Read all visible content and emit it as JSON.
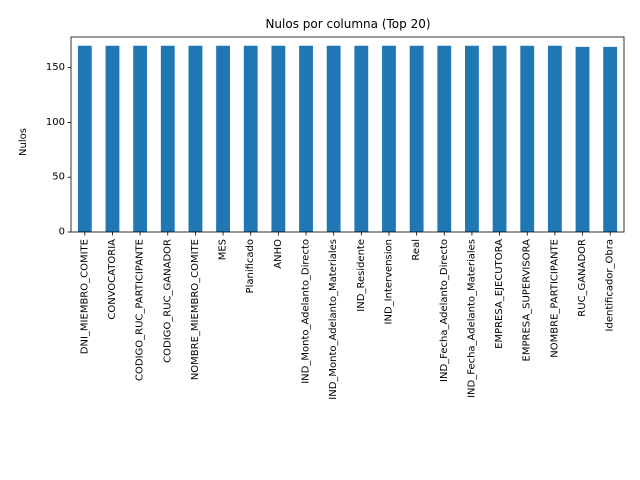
{
  "chart_data": {
    "type": "bar",
    "title": "Nulos por columna (Top 20)",
    "xlabel": "",
    "ylabel": "Nulos",
    "ylim": [
      0,
      178
    ],
    "yticks": [
      0,
      50,
      100,
      150
    ],
    "grid": false,
    "legend": "none",
    "bar_color": "#1f77b4",
    "categories": [
      "DNI_MIEMBRO_COMITE",
      "CONVOCATORIA",
      "CODIGO_RUC_PARTICIPANTE",
      "CODIGO_RUC_GANADOR",
      "NOMBRE_MIEMBRO_COMITE",
      "MES",
      "Planificado",
      "ANHO",
      "IND_Monto_Adelanto_Directo",
      "IND_Monto_Adelanto_Materiales",
      "IND_Residente",
      "IND_Intervension",
      "Real",
      "IND_Fecha_Adelanto_Directo",
      "IND_Fecha_Adelanto_Materiales",
      "EMPRESA_EJECUTORA",
      "EMPRESA_SUPERVISORA",
      "NOMBRE_PARTICIPANTE",
      "RUC_GANADOR",
      "Identificador_Obra"
    ],
    "values": [
      170,
      170,
      170,
      170,
      170,
      170,
      170,
      170,
      170,
      170,
      170,
      170,
      170,
      170,
      170,
      170,
      170,
      170,
      169,
      169
    ]
  }
}
